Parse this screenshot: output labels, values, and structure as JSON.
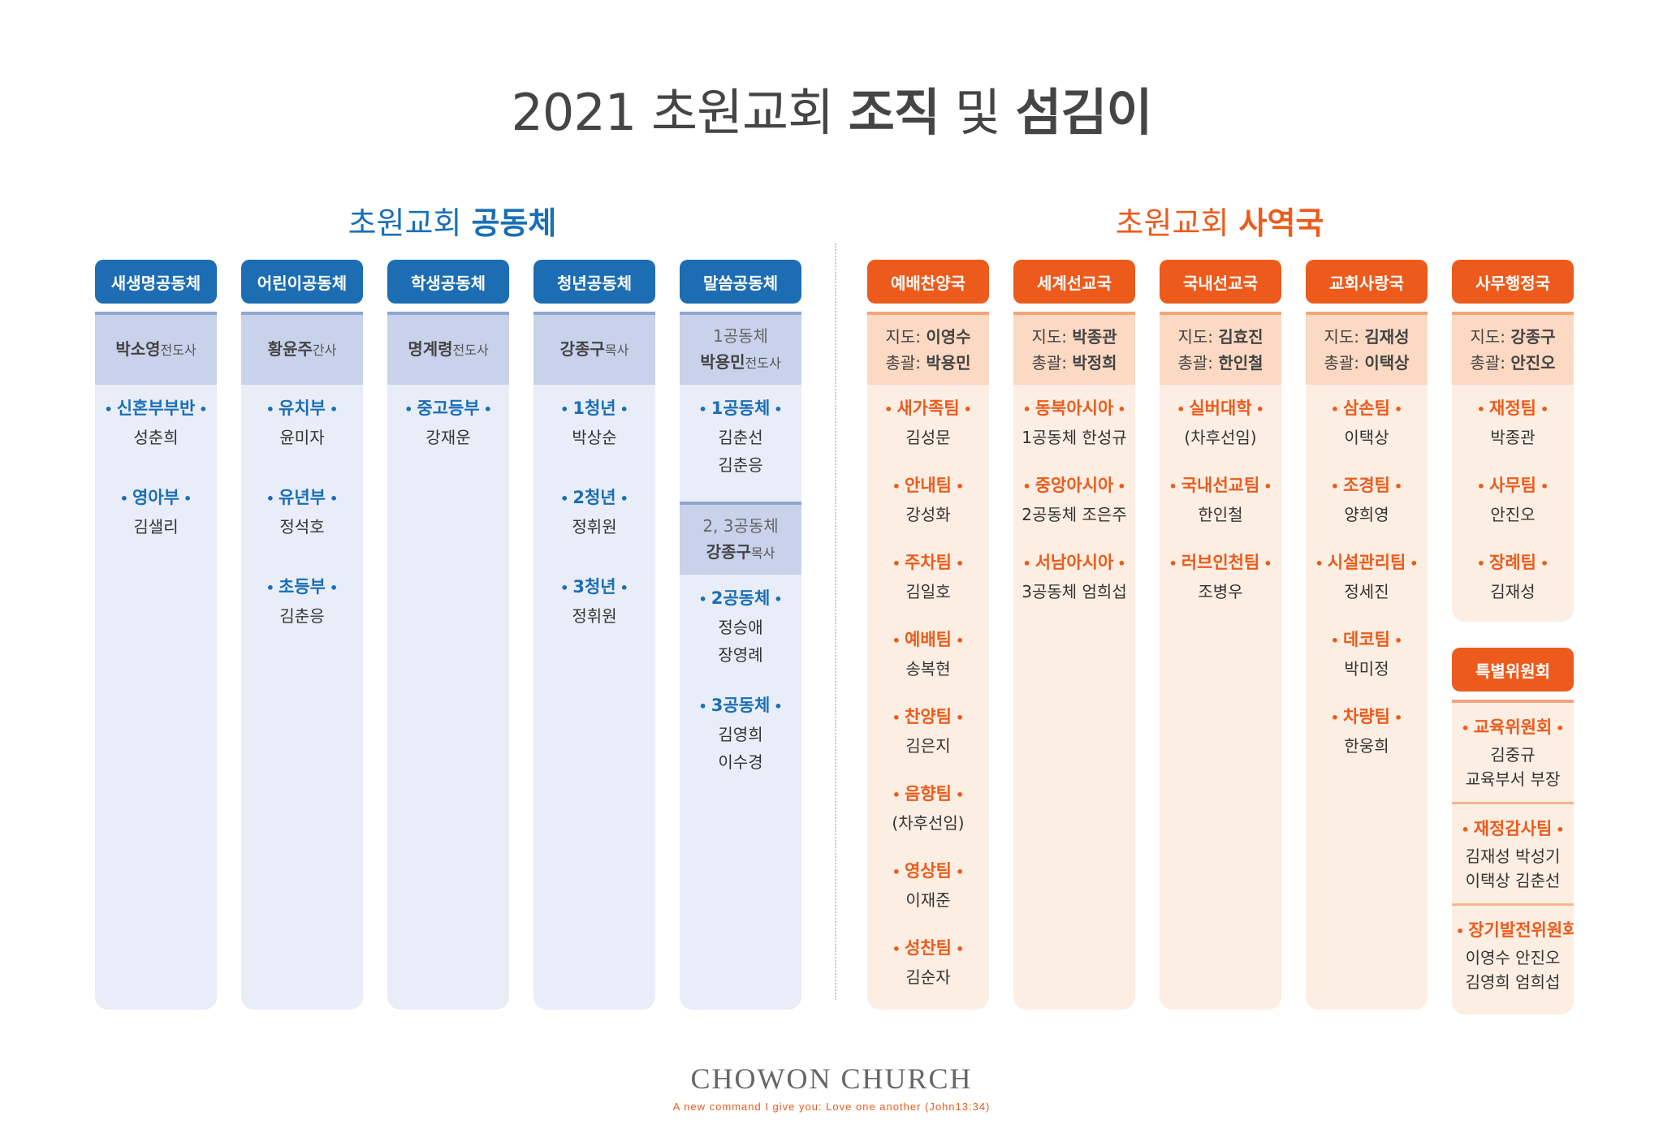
{
  "title": {
    "part1": "2021 초원교회 ",
    "bold1": "조직",
    "part2": " 및 ",
    "bold2": "섬김이"
  },
  "left_section": {
    "normal": "초원교회 ",
    "bold": "공동체"
  },
  "right_section": {
    "normal": "초원교회 ",
    "bold": "사역국"
  },
  "communities": [
    {
      "name": "새생명공동체",
      "lead_name": "박소영",
      "lead_title": "전도사",
      "items": [
        {
          "label": "신혼부부반",
          "people": [
            "성춘희"
          ]
        },
        {
          "label": "영아부",
          "people": [
            "김샐리"
          ]
        }
      ]
    },
    {
      "name": "어린이공동체",
      "lead_name": "황윤주",
      "lead_title": "간사",
      "items": [
        {
          "label": "유치부",
          "people": [
            "윤미자"
          ]
        },
        {
          "label": "유년부",
          "people": [
            "정석호"
          ]
        },
        {
          "label": "초등부",
          "people": [
            "김춘응"
          ]
        }
      ]
    },
    {
      "name": "학생공동체",
      "lead_name": "명계령",
      "lead_title": "전도사",
      "items": [
        {
          "label": "중고등부",
          "people": [
            "강재운"
          ]
        }
      ]
    },
    {
      "name": "청년공동체",
      "lead_name": "강종구",
      "lead_title": "목사",
      "items": [
        {
          "label": "1청년",
          "people": [
            "박상순"
          ]
        },
        {
          "label": "2청년",
          "people": [
            "정휘원"
          ]
        },
        {
          "label": "3청년",
          "people": [
            "정휘원"
          ]
        }
      ]
    },
    {
      "name": "말씀공동체",
      "lead_group": "1공동체",
      "lead_name": "박용민",
      "lead_title": "전도사",
      "items": [
        {
          "label": "1공동체",
          "people": [
            "김춘선",
            "김춘응"
          ]
        }
      ],
      "sub_lead_group": "2, 3공동체",
      "sub_lead_name": "강종구",
      "sub_lead_title": "목사",
      "sub_items": [
        {
          "label": "2공동체",
          "people": [
            "정승애",
            "장영례"
          ]
        },
        {
          "label": "3공동체",
          "people": [
            "김영희",
            "이수경"
          ]
        }
      ]
    }
  ],
  "ministries": [
    {
      "name": "예배찬양국",
      "guide_label": "지도: ",
      "guide": "이영수",
      "head_label": "총괄: ",
      "head": "박용민",
      "items": [
        {
          "label": "새가족팀",
          "people": [
            "김성문"
          ]
        },
        {
          "label": "안내팀",
          "people": [
            "강성화"
          ]
        },
        {
          "label": "주차팀",
          "people": [
            "김일호"
          ]
        },
        {
          "label": "예배팀",
          "people": [
            "송복현"
          ]
        },
        {
          "label": "찬양팀",
          "people": [
            "김은지"
          ]
        },
        {
          "label": "음향팀",
          "people": [
            "(차후선임)"
          ]
        },
        {
          "label": "영상팀",
          "people": [
            "이재준"
          ]
        },
        {
          "label": "성찬팀",
          "people": [
            "김순자"
          ]
        }
      ]
    },
    {
      "name": "세계선교국",
      "guide_label": "지도: ",
      "guide": "박종관",
      "head_label": "총괄: ",
      "head": "박정희",
      "items": [
        {
          "label": "동북아시아",
          "people": [
            "1공동체 한성규"
          ]
        },
        {
          "label": "중앙아시아",
          "people": [
            "2공동체 조은주"
          ]
        },
        {
          "label": "서남아시아",
          "people": [
            "3공동체 엄희섭"
          ]
        }
      ]
    },
    {
      "name": "국내선교국",
      "guide_label": "지도: ",
      "guide": "김효진",
      "head_label": "총괄: ",
      "head": "한인철",
      "items": [
        {
          "label": "실버대학",
          "people": [
            "(차후선임)"
          ]
        },
        {
          "label": "국내선교팀",
          "people": [
            "한인철"
          ]
        },
        {
          "label": "러브인천팀",
          "people": [
            "조병우"
          ]
        }
      ]
    },
    {
      "name": "교회사랑국",
      "guide_label": "지도: ",
      "guide": "김재성",
      "head_label": "총괄: ",
      "head": "이택상",
      "items": [
        {
          "label": "삼손팀",
          "people": [
            "이택상"
          ]
        },
        {
          "label": "조경팀",
          "people": [
            "양희영"
          ]
        },
        {
          "label": "시설관리팀",
          "people": [
            "정세진"
          ]
        },
        {
          "label": "데코팀",
          "people": [
            "박미정"
          ]
        },
        {
          "label": "차량팀",
          "people": [
            "한웅희"
          ]
        }
      ]
    },
    {
      "name": "사무행정국",
      "guide_label": "지도: ",
      "guide": "강종구",
      "head_label": "총괄: ",
      "head": "안진오",
      "items": [
        {
          "label": "재정팀",
          "people": [
            "박종관"
          ]
        },
        {
          "label": "사무팀",
          "people": [
            "안진오"
          ]
        },
        {
          "label": "장례팀",
          "people": [
            "김재성"
          ]
        }
      ]
    }
  ],
  "special": {
    "name": "특별위원회",
    "items": [
      {
        "label": "교육위원회",
        "lines": [
          "김중규",
          "교육부서 부장"
        ]
      },
      {
        "label": "재정감사팀",
        "lines": [
          "김재성  박성기",
          "이택상  김춘선"
        ]
      },
      {
        "label": "장기발전위원회",
        "lines": [
          "이영수  안진오",
          "김영희  엄희섭"
        ]
      }
    ]
  },
  "footer": {
    "brand": "CHOWON CHURCH",
    "verse": "A new command I give you: Love one another (John13:34)"
  },
  "colors": {
    "blue": "#1d6db3",
    "orange": "#ec5b1c",
    "blue_bg": "#e9edf7",
    "orange_bg": "#fdeee3"
  }
}
